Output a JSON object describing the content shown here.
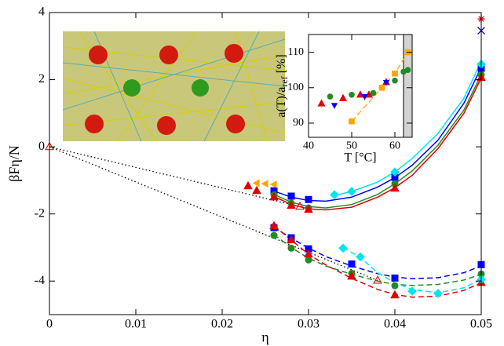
{
  "chart_data": [
    {
      "type": "line",
      "xlabel": "η",
      "ylabel": "βFη/N",
      "xlim": [
        0,
        0.05
      ],
      "ylim": [
        -5,
        4
      ],
      "xticks": [
        0,
        0.01,
        0.02,
        0.03,
        0.04,
        0.05
      ],
      "yticks": [
        -4,
        -2,
        0,
        2,
        4
      ],
      "series": [
        {
          "color": "#0000ff",
          "marker": "square",
          "x": [
            0.026,
            0.028,
            0.03,
            0.04,
            0.05
          ],
          "values": [
            -1.31,
            -1.47,
            -1.57,
            -0.91,
            2.34
          ]
        },
        {
          "color": "#228b22",
          "marker": "circle",
          "x": [
            0.026,
            0.028,
            0.03,
            0.04,
            0.05
          ],
          "values": [
            -1.43,
            -1.68,
            -1.82,
            -1.1,
            2.15
          ]
        },
        {
          "color": "#e00000",
          "marker": "triangle",
          "x": [
            0.023,
            0.024,
            0.026,
            0.028,
            0.03,
            0.04,
            0.05
          ],
          "values": [
            -1.17,
            -1.31,
            -1.5,
            -1.75,
            -1.87,
            -1.24,
            2.06
          ]
        },
        {
          "color": "#00e5ee",
          "marker": "diamond",
          "x": [
            0.033,
            0.035,
            0.04,
            0.05
          ],
          "values": [
            -1.43,
            -1.33,
            -0.75,
            2.46
          ]
        },
        {
          "color": "#ffa500",
          "marker": "triangle-left",
          "x": [
            0.024,
            0.025,
            0.026
          ],
          "values": [
            -1.08,
            -1.1,
            -1.12
          ]
        },
        {
          "color": "#0000ff",
          "marker": "square",
          "x": [
            0.026,
            0.028,
            0.03,
            0.035,
            0.04,
            0.05
          ],
          "values": [
            -2.41,
            -2.71,
            -3.04,
            -3.49,
            -3.91,
            -3.51
          ]
        },
        {
          "color": "#228b22",
          "marker": "circle",
          "x": [
            0.026,
            0.028,
            0.03,
            0.035,
            0.04,
            0.05
          ],
          "values": [
            -2.64,
            -3.02,
            -3.37,
            -3.77,
            -4.14,
            -3.79
          ]
        },
        {
          "color": "#e00000",
          "marker": "triangle",
          "x": [
            0.026,
            0.028,
            0.03,
            0.035,
            0.04,
            0.05
          ],
          "values": [
            -2.36,
            -2.78,
            -3.2,
            -3.86,
            -4.42,
            -4.05
          ]
        },
        {
          "color": "#00e5ee",
          "marker": "diamond",
          "x": [
            0.034,
            0.036,
            0.042,
            0.045,
            0.05
          ],
          "values": [
            -3.02,
            -3.28,
            -4.3,
            -4.37,
            -3.95
          ]
        },
        {
          "color": "#000000",
          "line": "dot",
          "marker": "none",
          "x": [
            0,
            0.029
          ],
          "values": [
            0,
            -1.78
          ]
        },
        {
          "color": "#000000",
          "line": "dot",
          "marker": "none",
          "x": [
            0,
            0.038
          ],
          "values": [
            0,
            -3.98
          ]
        },
        {
          "color": "#e00000",
          "marker": "triangle-open",
          "x": [
            0,
            0.029,
            0.038
          ],
          "values": [
            0,
            -1.78,
            -3.98
          ]
        },
        {
          "color": "#e00000",
          "marker": "star",
          "x": [
            0.05
          ],
          "values": [
            3.81
          ]
        },
        {
          "color": "#0000aa",
          "marker": "x",
          "x": [
            0.05
          ],
          "values": [
            3.46
          ]
        },
        {
          "color": "#0000ff",
          "line": "solid",
          "marker": "none",
          "x": [
            0.026,
            0.028,
            0.03,
            0.032,
            0.035,
            0.038,
            0.04,
            0.042,
            0.045,
            0.048,
            0.05
          ],
          "values": [
            -1.32,
            -1.5,
            -1.6,
            -1.62,
            -1.5,
            -1.2,
            -0.92,
            -0.55,
            0.2,
            1.3,
            2.37
          ]
        },
        {
          "color": "#228b22",
          "line": "solid",
          "marker": "none",
          "x": [
            0.026,
            0.028,
            0.03,
            0.032,
            0.035,
            0.038,
            0.04,
            0.042,
            0.045,
            0.048,
            0.05
          ],
          "values": [
            -1.42,
            -1.65,
            -1.78,
            -1.82,
            -1.72,
            -1.42,
            -1.1,
            -0.72,
            0.05,
            1.1,
            2.15
          ]
        },
        {
          "color": "#e00000",
          "line": "solid",
          "marker": "none",
          "x": [
            0.026,
            0.028,
            0.03,
            0.032,
            0.035,
            0.038,
            0.04,
            0.042,
            0.045,
            0.048,
            0.05
          ],
          "values": [
            -1.48,
            -1.72,
            -1.85,
            -1.88,
            -1.8,
            -1.5,
            -1.22,
            -0.85,
            -0.05,
            1.0,
            2.05
          ]
        },
        {
          "color": "#00e5ee",
          "line": "solid",
          "marker": "none",
          "x": [
            0.033,
            0.035,
            0.038,
            0.04,
            0.042,
            0.045,
            0.048,
            0.05
          ],
          "values": [
            -1.45,
            -1.33,
            -1.05,
            -0.75,
            -0.35,
            0.4,
            1.45,
            2.55
          ]
        },
        {
          "color": "#0000ff",
          "line": "dash",
          "marker": "none",
          "x": [
            0.026,
            0.028,
            0.03,
            0.032,
            0.035,
            0.038,
            0.04,
            0.042,
            0.045,
            0.048,
            0.05
          ],
          "values": [
            -2.4,
            -2.72,
            -3.02,
            -3.27,
            -3.55,
            -3.78,
            -3.88,
            -3.93,
            -3.9,
            -3.75,
            -3.55
          ]
        },
        {
          "color": "#228b22",
          "line": "dash",
          "marker": "none",
          "x": [
            0.026,
            0.028,
            0.03,
            0.032,
            0.035,
            0.038,
            0.04,
            0.042,
            0.045,
            0.048,
            0.05
          ],
          "values": [
            -2.62,
            -3.0,
            -3.32,
            -3.55,
            -3.8,
            -4.0,
            -4.1,
            -4.13,
            -4.1,
            -3.97,
            -3.8
          ]
        },
        {
          "color": "#e00000",
          "line": "dash",
          "marker": "none",
          "x": [
            0.026,
            0.028,
            0.03,
            0.032,
            0.035,
            0.038,
            0.04,
            0.042,
            0.045,
            0.048,
            0.05
          ],
          "values": [
            -2.35,
            -2.78,
            -3.2,
            -3.52,
            -3.92,
            -4.25,
            -4.4,
            -4.48,
            -4.45,
            -4.28,
            -4.05
          ]
        },
        {
          "color": "#00e5ee",
          "line": "dash",
          "marker": "none",
          "x": [
            0.034,
            0.036,
            0.038,
            0.04,
            0.042,
            0.045,
            0.048,
            0.05
          ],
          "values": [
            -3.0,
            -3.3,
            -3.75,
            -4.05,
            -4.25,
            -4.35,
            -4.2,
            -3.95
          ]
        }
      ]
    },
    {
      "type": "line",
      "xlabel": "T [°C]",
      "ylabel": "a(T)/a",
      "ylabel_sub": "ref",
      "ylabel_tail": " [%]",
      "xlim": [
        40,
        64
      ],
      "ylim": [
        86,
        115
      ],
      "xticks": [
        40,
        50,
        60
      ],
      "yticks": [
        90,
        100,
        110
      ],
      "shade": [
        62,
        64
      ],
      "series": [
        {
          "color": "#e00000",
          "marker": "triangle",
          "x": [
            43,
            48,
            52,
            54,
            58
          ],
          "values": [
            95.5,
            97,
            98,
            98,
            101.5
          ]
        },
        {
          "color": "#0000ff",
          "marker": "triangle-down",
          "x": [
            46,
            53,
            58
          ],
          "values": [
            95,
            97.5,
            101.5
          ]
        },
        {
          "color": "#228b22",
          "marker": "circle",
          "x": [
            45,
            50,
            55,
            57,
            60,
            62,
            63
          ],
          "values": [
            97.5,
            98,
            98.5,
            100,
            102,
            104.5,
            105
          ]
        },
        {
          "color": "#ffa500",
          "marker": "square",
          "line": "dash",
          "x": [
            50,
            57,
            60,
            63
          ],
          "values": [
            90.5,
            100,
            104,
            110
          ]
        }
      ]
    }
  ]
}
